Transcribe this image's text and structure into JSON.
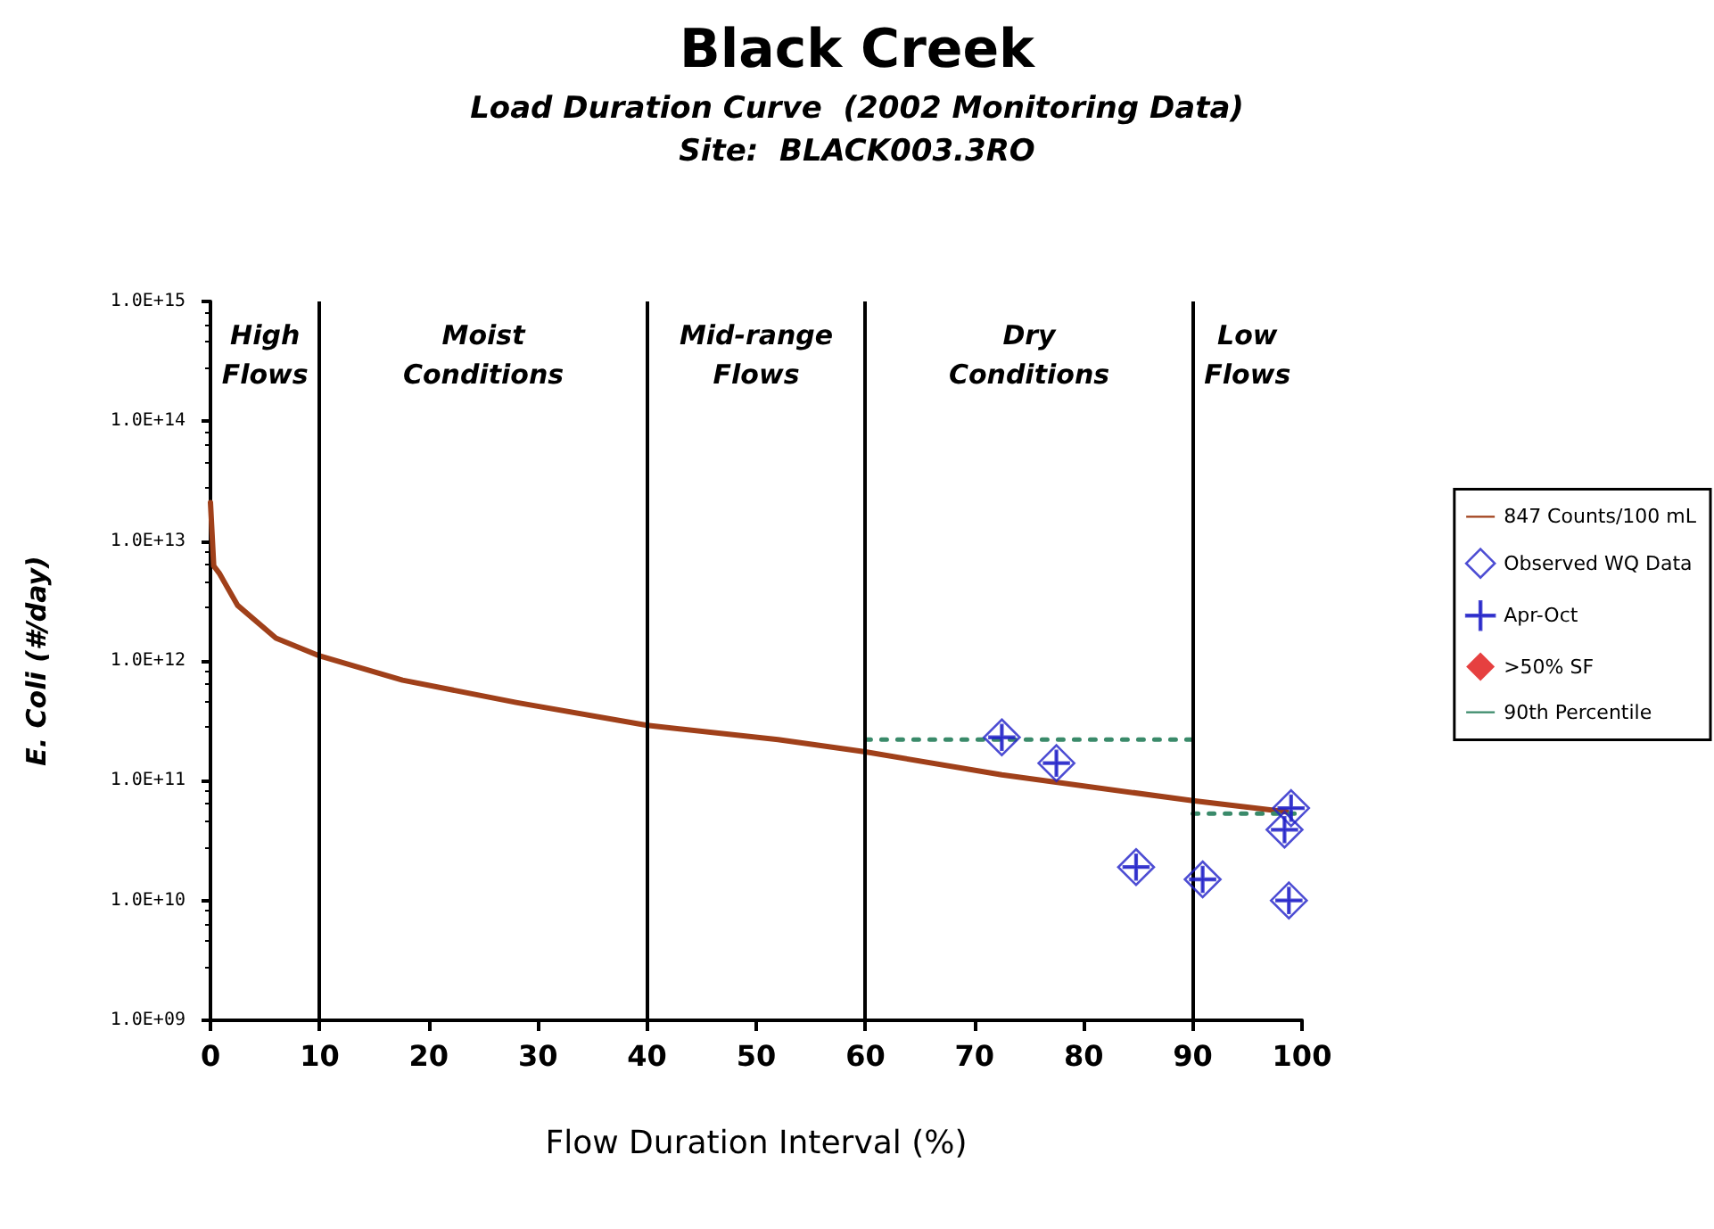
{
  "chart_data": {
    "type": "line",
    "title": "Black Creek",
    "subtitle": "Load Duration Curve  (2002 Monitoring Data)\nSite:  BLACK003.3RO",
    "xlabel": "Flow Duration Interval (%)",
    "ylabel": "E. Coli (#/day)",
    "log": "y",
    "xlim": [
      0,
      100
    ],
    "xticks": [
      0,
      10,
      20,
      30,
      40,
      50,
      60,
      70,
      80,
      90,
      100
    ],
    "ylim": [
      1000000000.0,
      1000000000000000.0
    ],
    "yticks": [
      {
        "value": 1000000000.0,
        "label": "1.0E+09"
      },
      {
        "value": 10000000000.0,
        "label": "1.0E+10"
      },
      {
        "value": 100000000000.0,
        "label": "1.0E+11"
      },
      {
        "value": 1000000000000.0,
        "label": "1.0E+12"
      },
      {
        "value": 10000000000000.0,
        "label": "1.0E+13"
      },
      {
        "value": 100000000000000.0,
        "label": "1.0E+14"
      },
      {
        "value": 1000000000000000.0,
        "label": "1.0E+15"
      }
    ],
    "grid": false,
    "legend": "right",
    "series": [
      {
        "name": "847 Counts/100 mL",
        "color": "#a0401a",
        "marker": "none",
        "line_style": "solid",
        "x": [
          0,
          0.3,
          0.8,
          2.5,
          6,
          10,
          17.6,
          28,
          40,
          52,
          60,
          72.5,
          90,
          98.6
        ],
        "values": [
          21000000000000.0,
          6200000000000.0,
          5400000000000.0,
          2900000000000.0,
          1550000000000.0,
          1100000000000.0,
          690000000000.0,
          450000000000.0,
          290000000000.0,
          220000000000.0,
          174000000000.0,
          112000000000.0,
          68000000000.0,
          55000000000.0
        ]
      },
      {
        "name": "Observed WQ Data",
        "type": "scatter",
        "color": "#2020c8",
        "marker": "diamond",
        "x": [
          72.5,
          77.5,
          84.8,
          90.9,
          99.0,
          98.4,
          98.8
        ],
        "values": [
          230000000000.0,
          140000000000.0,
          19000000000.0,
          15000000000.0,
          59000000000.0,
          39000000000.0,
          10000000000.0
        ]
      },
      {
        "name": "Apr-Oct",
        "type": "scatter",
        "color": "#2020c8",
        "marker": "cross",
        "x": [
          72.5,
          77.5,
          84.8,
          90.9,
          99.0,
          98.4,
          98.8
        ],
        "values": [
          230000000000.0,
          140000000000.0,
          19000000000.0,
          15000000000.0,
          59000000000.0,
          39000000000.0,
          10000000000.0
        ]
      },
      {
        "name": ">50% SF",
        "type": "scatter",
        "color": "#e01010",
        "marker": "diamond"
      },
      {
        "name": "90th Percentile",
        "type": "line",
        "color": "#3a8a6a",
        "marker": "none",
        "line_style": "dotted",
        "x": [
          60,
          90
        ],
        "values": [
          220000000000.0,
          220000000000.0
        ]
      },
      {
        "type": "line",
        "color": "#3a8a6a",
        "marker": "none",
        "line_style": "dotted",
        "x": [
          90,
          100
        ],
        "values": [
          53000000000.0,
          53000000000.0
        ]
      }
    ],
    "ref_lines": [
      {
        "axis": "x",
        "value": 10,
        "color": "#000000"
      },
      {
        "axis": "x",
        "value": 40,
        "color": "#000000"
      },
      {
        "axis": "x",
        "value": 60,
        "color": "#000000"
      },
      {
        "axis": "x",
        "value": 90,
        "color": "#000000"
      }
    ],
    "annotations": [
      "High\nFlows",
      "Moist\nConditions",
      "Mid-range\nFlows",
      "Dry\nConditions",
      "Low\nFlows"
    ]
  }
}
